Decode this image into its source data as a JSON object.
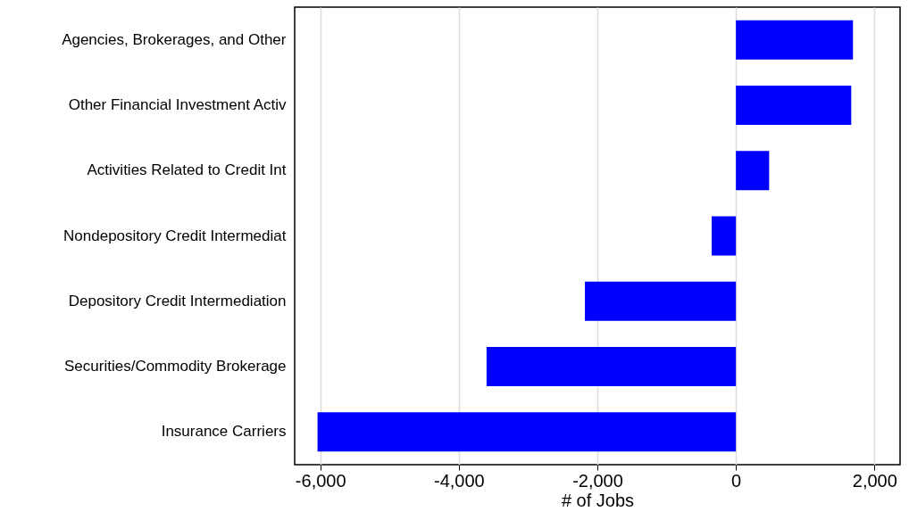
{
  "chart_data": {
    "type": "bar",
    "orientation": "horizontal",
    "xlabel": "# of Jobs",
    "categories": [
      "Agencies, Brokerages, and Other",
      "Other Financial Investment Activ",
      "Activities Related to Credit Int",
      "Nondepository Credit Intermediat",
      "Depository Credit Intermediation",
      "Securities/Commodity Brokerage",
      "Insurance Carriers"
    ],
    "values": [
      1690,
      1665,
      480,
      -350,
      -2180,
      -3600,
      -6040
    ],
    "color": "#0000ff",
    "xlim": [
      -6370,
      2370
    ],
    "xticks": [
      {
        "value": -6000,
        "label": "-6,000"
      },
      {
        "value": -4000,
        "label": "-4,000"
      },
      {
        "value": -2000,
        "label": "-2,000"
      },
      0,
      {
        "value": 2000,
        "label": "2,000"
      }
    ],
    "grid": "x"
  }
}
